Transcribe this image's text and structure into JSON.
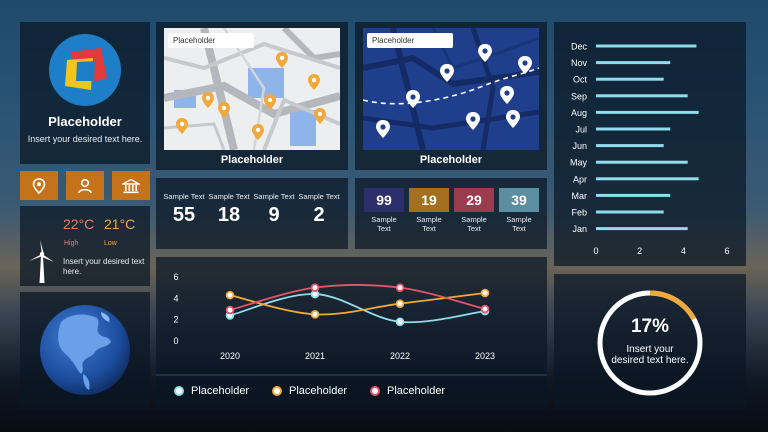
{
  "profile": {
    "title": "Placeholder",
    "text": "Insert your desired text here."
  },
  "icon_buttons": [
    {
      "icon": "location-pin-icon"
    },
    {
      "icon": "user-icon"
    },
    {
      "icon": "bank-icon"
    }
  ],
  "weather": {
    "high_temp": "22°C",
    "low_temp": "21°C",
    "high_label": "High",
    "low_label": "Low",
    "text": "Insert your desired text here.",
    "icon": "wind-turbine-icon",
    "colors": {
      "high": "#f07a6c",
      "low": "#f2a93b"
    }
  },
  "globe": {
    "icon": "globe-icon"
  },
  "maps": [
    {
      "search_placeholder": "Placeholder",
      "label": "Placeholder",
      "style": "light"
    },
    {
      "search_placeholder": "Placeholder",
      "label": "Placeholder",
      "style": "dark"
    }
  ],
  "stats_primary": [
    {
      "label": "Sample Text",
      "value": "55"
    },
    {
      "label": "Sample Text",
      "value": "18"
    },
    {
      "label": "Sample Text",
      "value": "9"
    },
    {
      "label": "Sample Text",
      "value": "2"
    }
  ],
  "stats_secondary": [
    {
      "value": "99",
      "label": "Sample Text",
      "color": "#2c2f6b"
    },
    {
      "value": "19",
      "label": "Sample Text",
      "color": "#a4701f"
    },
    {
      "value": "29",
      "label": "Sample Text",
      "color": "#9b3b4e"
    },
    {
      "value": "39",
      "label": "Sample Text",
      "color": "#5a8ea0"
    }
  ],
  "line_chart": {
    "chart_data": {
      "type": "line",
      "categories": [
        "2020",
        "2021",
        "2022",
        "2023"
      ],
      "y_ticks": [
        "0",
        "2",
        "4",
        "6"
      ],
      "ylim": [
        0,
        6
      ],
      "series": [
        {
          "name": "Placeholder",
          "values": [
            2.4,
            4.4,
            1.8,
            2.8
          ],
          "color": "#8fdcec"
        },
        {
          "name": "Placeholder",
          "values": [
            4.3,
            2.5,
            3.5,
            4.5
          ],
          "color": "#f2a93b"
        },
        {
          "name": "Placeholder",
          "values": [
            2.9,
            5.0,
            5.0,
            3.0
          ],
          "color": "#e2556b"
        }
      ]
    }
  },
  "bar_chart": {
    "chart_data": {
      "type": "bar",
      "orientation": "horizontal",
      "categories": [
        "Dec",
        "Nov",
        "Oct",
        "Sep",
        "Aug",
        "Jul",
        "Jun",
        "May",
        "Apr",
        "Mar",
        "Feb",
        "Jan"
      ],
      "values": [
        4.6,
        3.4,
        3.1,
        4.2,
        4.7,
        3.4,
        3.1,
        4.2,
        4.7,
        3.4,
        3.1,
        4.2
      ],
      "x_ticks": [
        "0",
        "2",
        "4",
        "6"
      ],
      "xlim": [
        0,
        6
      ],
      "color": "#8fdcec"
    }
  },
  "percent": {
    "value": "17%",
    "fraction": 0.17,
    "text": "Insert your desired text here.",
    "color": "#f2a93b"
  }
}
